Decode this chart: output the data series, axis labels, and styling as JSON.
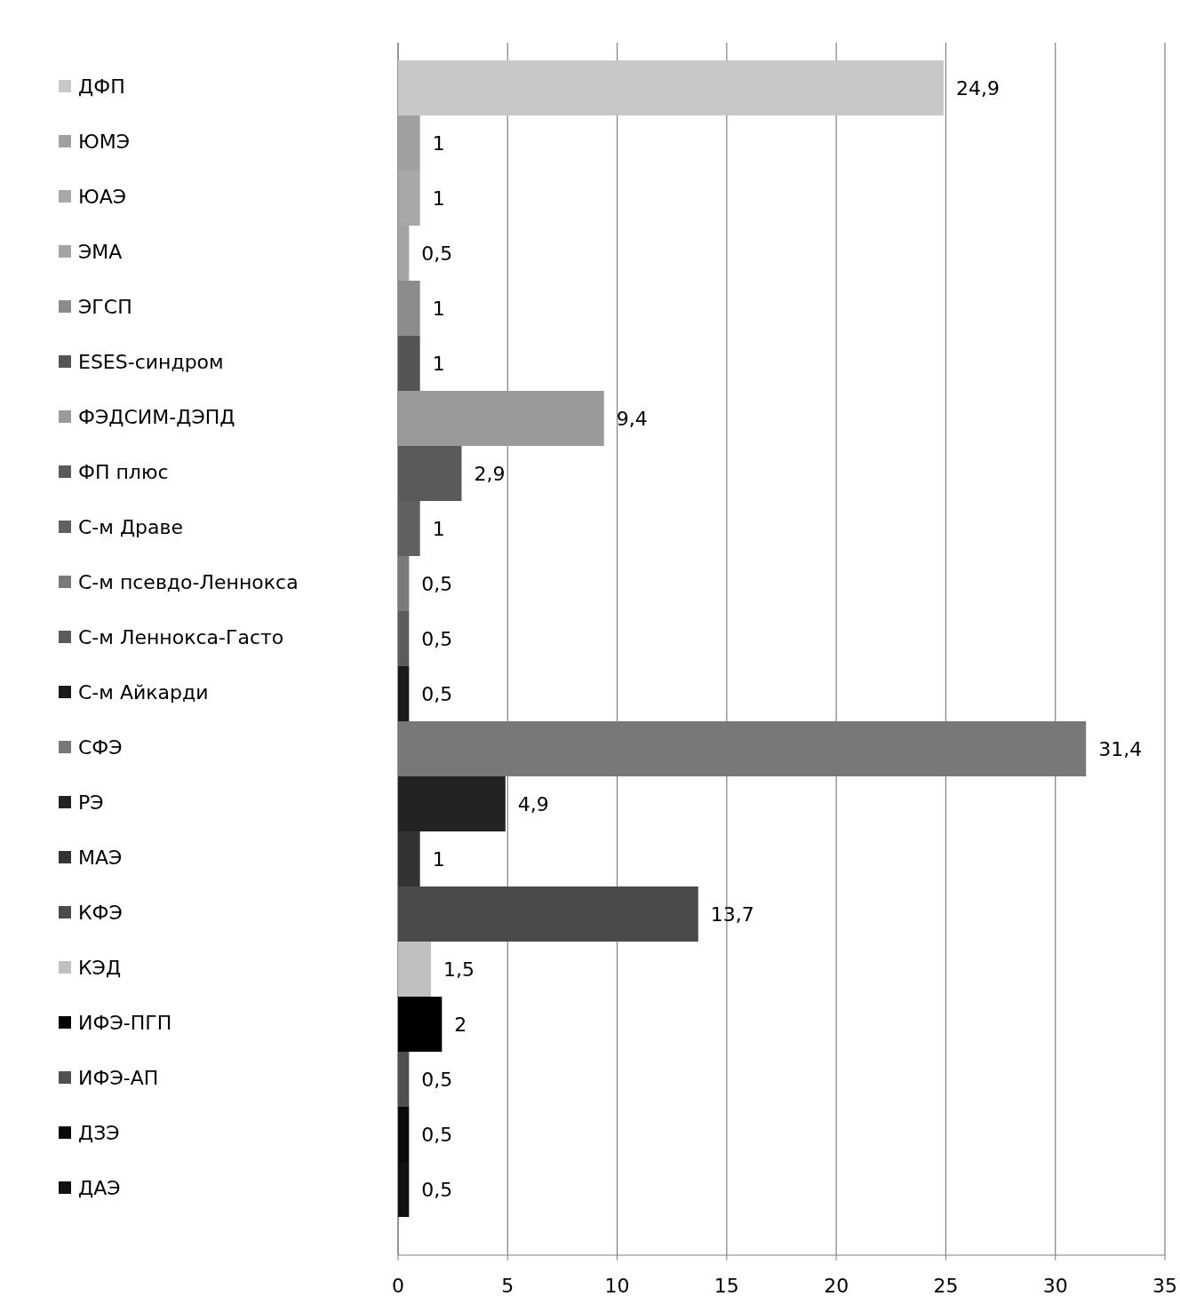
{
  "chart_data": {
    "type": "bar",
    "orientation": "horizontal",
    "categories": [
      null
    ],
    "xlim": [
      0,
      35
    ],
    "xticks": [
      0,
      5,
      10,
      15,
      20,
      25,
      30,
      35
    ],
    "grid": "x",
    "legend": "left",
    "series": [
      {
        "name": "ДФП",
        "color": "#c8c8c8",
        "values": [
          24.9
        ],
        "value_labels": [
          "24,9"
        ]
      },
      {
        "name": "ЮМЭ",
        "color": "#a0a0a0",
        "values": [
          1
        ],
        "value_labels": [
          "1"
        ]
      },
      {
        "name": "ЮАЭ",
        "color": "#a8a8a8",
        "values": [
          1
        ],
        "value_labels": [
          "1"
        ]
      },
      {
        "name": "ЭМА",
        "color": "#a4a4a4",
        "values": [
          0.5
        ],
        "value_labels": [
          "0,5"
        ]
      },
      {
        "name": "ЭГСП",
        "color": "#8c8c8c",
        "values": [
          1
        ],
        "value_labels": [
          "1"
        ]
      },
      {
        "name": "ESES-синдром",
        "color": "#555555",
        "values": [
          1
        ],
        "value_labels": [
          "1"
        ]
      },
      {
        "name": "ФЭДСИМ-ДЭПД",
        "color": "#9a9a9a",
        "values": [
          9.4
        ],
        "value_labels": [
          "9,4"
        ]
      },
      {
        "name": "ФП плюс",
        "color": "#5a5a5a",
        "values": [
          2.9
        ],
        "value_labels": [
          "2,9"
        ]
      },
      {
        "name": "С-м Драве",
        "color": "#606060",
        "values": [
          1
        ],
        "value_labels": [
          "1"
        ]
      },
      {
        "name": "С-м псевдо-Леннокса",
        "color": "#7a7a7a",
        "values": [
          0.5
        ],
        "value_labels": [
          "0,5"
        ]
      },
      {
        "name": "С-м Леннокса-Гасто",
        "color": "#5c5c5c",
        "values": [
          0.5
        ],
        "value_labels": [
          "0,5"
        ]
      },
      {
        "name": "С-м Айкарди",
        "color": "#1a1a1a",
        "values": [
          0.5
        ],
        "value_labels": [
          "0,5"
        ]
      },
      {
        "name": "СФЭ",
        "color": "#787878",
        "values": [
          31.4
        ],
        "value_labels": [
          "31,4"
        ]
      },
      {
        "name": "РЭ",
        "color": "#232323",
        "values": [
          4.9
        ],
        "value_labels": [
          "4,9"
        ]
      },
      {
        "name": "МАЭ",
        "color": "#333333",
        "values": [
          1
        ],
        "value_labels": [
          "1"
        ]
      },
      {
        "name": "КФЭ",
        "color": "#4a4a4a",
        "values": [
          13.7
        ],
        "value_labels": [
          "13,7"
        ]
      },
      {
        "name": "КЭД",
        "color": "#c0c0c0",
        "values": [
          1.5
        ],
        "value_labels": [
          "1,5"
        ]
      },
      {
        "name": "ИФЭ-ПГП",
        "color": "#000000",
        "values": [
          2
        ],
        "value_labels": [
          "2"
        ]
      },
      {
        "name": "ИФЭ-АП",
        "color": "#505050",
        "values": [
          0.5
        ],
        "value_labels": [
          "0,5"
        ]
      },
      {
        "name": "ДЗЭ",
        "color": "#0a0a0a",
        "values": [
          0.5
        ],
        "value_labels": [
          "0,5"
        ]
      },
      {
        "name": "ДАЭ",
        "color": "#111111",
        "values": [
          0.5
        ],
        "value_labels": [
          "0,5"
        ]
      }
    ]
  }
}
